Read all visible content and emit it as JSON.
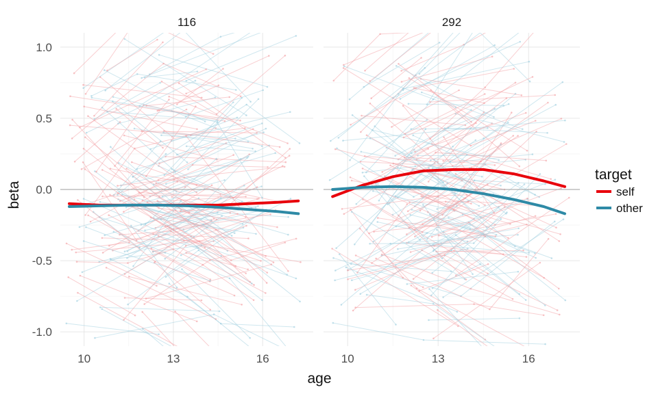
{
  "chart_data": {
    "type": "line",
    "xlabel": "age",
    "ylabel": "beta",
    "xlim": [
      9.2,
      17.7
    ],
    "ylim": [
      -1.1,
      1.1
    ],
    "xticks": [
      10,
      13,
      16
    ],
    "xtick_labels": [
      "10",
      "13",
      "16"
    ],
    "yticks": [
      1.0,
      0.5,
      0.0,
      -0.5,
      -1.0
    ],
    "ytick_labels": [
      "1.0",
      "0.5",
      "0.0",
      "-0.5",
      "-1.0"
    ],
    "grid": true,
    "hline_y": 0,
    "legend": {
      "title": "target",
      "placement": "right",
      "entries": [
        {
          "label": "self",
          "color": "#e8000b"
        },
        {
          "label": "other",
          "color": "#2e8aa6"
        }
      ]
    },
    "colors": {
      "self": "#e8000b",
      "other": "#2e8aa6",
      "self_individual": "#f4a0a4",
      "other_individual": "#9fcfe0",
      "grid": "#e6e6e6",
      "zero_line": "#9e9e9e"
    },
    "panels": [
      {
        "title": "116",
        "series": [
          {
            "name": "self",
            "x": [
              9.5,
              10.5,
              11.5,
              12.5,
              13.5,
              14.5,
              15.5,
              16.5,
              17.2
            ],
            "y": [
              -0.1,
              -0.11,
              -0.11,
              -0.11,
              -0.11,
              -0.11,
              -0.1,
              -0.09,
              -0.08
            ]
          },
          {
            "name": "other",
            "x": [
              9.5,
              10.5,
              11.5,
              12.5,
              13.5,
              14.5,
              15.5,
              16.5,
              17.2
            ],
            "y": [
              -0.12,
              -0.115,
              -0.11,
              -0.11,
              -0.115,
              -0.125,
              -0.14,
              -0.155,
              -0.17
            ]
          }
        ]
      },
      {
        "title": "292",
        "series": [
          {
            "name": "self",
            "x": [
              9.5,
              10.5,
              11.5,
              12.5,
              13.5,
              14.5,
              15.5,
              16.5,
              17.2
            ],
            "y": [
              -0.05,
              0.03,
              0.09,
              0.13,
              0.14,
              0.14,
              0.11,
              0.06,
              0.02
            ]
          },
          {
            "name": "other",
            "x": [
              9.5,
              10.5,
              11.5,
              12.5,
              13.5,
              14.5,
              15.5,
              16.5,
              17.2
            ],
            "y": [
              0.0,
              0.015,
              0.02,
              0.015,
              0.0,
              -0.03,
              -0.07,
              -0.12,
              -0.17
            ]
          }
        ]
      }
    ]
  }
}
